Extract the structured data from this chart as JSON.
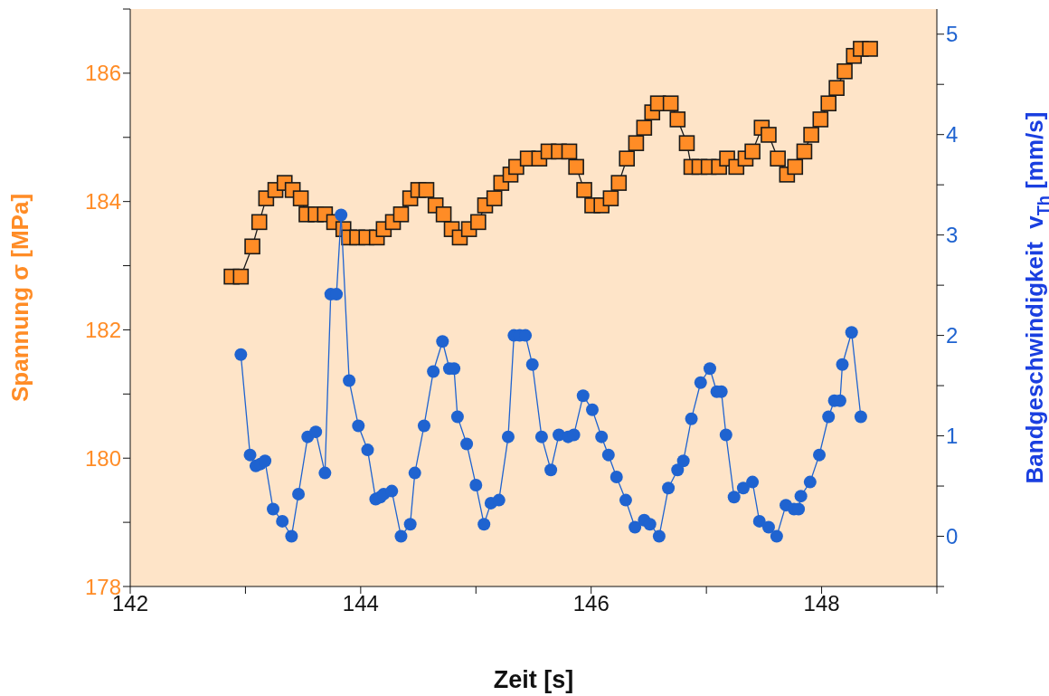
{
  "chart_data": {
    "type": "line",
    "xlabel": "Zeit [s]",
    "ylabel": "Spannung σ [MPa]",
    "y2label": "Bandgeschwindigkeit  v$_{Th}$ [mm/s]",
    "xlim": [
      142,
      149
    ],
    "xticks": [
      142,
      {
        "value": 143,
        "label": null
      },
      144,
      {
        "value": 145,
        "label": null
      },
      146,
      {
        "value": 147,
        "label": null
      },
      148,
      {
        "value": 149,
        "label": null
      }
    ],
    "ylim": [
      178,
      187
    ],
    "yticks": [
      178,
      {
        "value": 179,
        "label": null
      },
      180,
      {
        "value": 181,
        "label": null
      },
      182,
      {
        "value": 183,
        "label": null
      },
      184,
      {
        "value": 185,
        "label": null
      },
      186,
      {
        "value": 187,
        "label": null
      }
    ],
    "y2lim": [
      -0.5,
      5.25
    ],
    "y2ticks": [
      {
        "value": -0.5,
        "label": null
      },
      0,
      {
        "value": 0.5,
        "label": null
      },
      1,
      {
        "value": 1.5,
        "label": null
      },
      2,
      {
        "value": 2.5,
        "label": null
      },
      3,
      {
        "value": 3.5,
        "label": null
      },
      4,
      {
        "value": 4.5,
        "label": null
      },
      5
    ],
    "line_style": "solid",
    "series": [
      {
        "color": "#ff8c26",
        "marker": "square",
        "axis": "y",
        "x": [
          142.88,
          142.96,
          143.06,
          143.12,
          143.18,
          143.26,
          143.34,
          143.41,
          143.48,
          143.53,
          143.61,
          143.69,
          143.77,
          143.85,
          143.9,
          143.97,
          144.05,
          144.14,
          144.2,
          144.28,
          144.35,
          144.43,
          144.5,
          144.57,
          144.65,
          144.72,
          144.79,
          144.86,
          144.94,
          145.02,
          145.08,
          145.16,
          145.22,
          145.3,
          145.35,
          145.45,
          145.55,
          145.63,
          145.72,
          145.81,
          145.87,
          145.94,
          146.01,
          146.09,
          146.17,
          146.24,
          146.31,
          146.39,
          146.46,
          146.53,
          146.58,
          146.69,
          146.75,
          146.83,
          146.87,
          146.94,
          147.02,
          147.11,
          147.18,
          147.26,
          147.34,
          147.4,
          147.48,
          147.54,
          147.62,
          147.7,
          147.77,
          147.85,
          147.91,
          147.99,
          148.06,
          148.13,
          148.2,
          148.28,
          148.34,
          148.42
        ],
        "values": [
          182.83,
          182.83,
          183.3,
          183.68,
          184.05,
          184.18,
          184.29,
          184.18,
          184.05,
          183.8,
          183.8,
          183.8,
          183.68,
          183.57,
          183.44,
          183.44,
          183.44,
          183.44,
          183.57,
          183.68,
          183.8,
          184.05,
          184.18,
          184.18,
          183.94,
          183.8,
          183.57,
          183.44,
          183.57,
          183.68,
          183.94,
          184.05,
          184.29,
          184.42,
          184.54,
          184.67,
          184.67,
          184.78,
          184.78,
          184.78,
          184.54,
          184.18,
          183.94,
          183.94,
          184.05,
          184.29,
          184.67,
          184.91,
          185.15,
          185.39,
          185.53,
          185.53,
          185.28,
          184.91,
          184.54,
          184.54,
          184.54,
          184.54,
          184.67,
          184.54,
          184.67,
          184.78,
          185.15,
          185.04,
          184.67,
          184.42,
          184.54,
          184.78,
          185.04,
          185.28,
          185.53,
          185.77,
          186.03,
          186.27,
          186.38,
          186.38
        ]
      },
      {
        "color": "#1f63d0",
        "marker": "circle",
        "axis": "y2",
        "x": [
          142.96,
          143.04,
          143.09,
          143.13,
          143.17,
          143.24,
          143.32,
          143.4,
          143.46,
          143.54,
          143.61,
          143.69,
          143.74,
          143.79,
          143.83,
          143.9,
          143.98,
          144.06,
          144.13,
          144.17,
          144.2,
          144.27,
          144.35,
          144.43,
          144.47,
          144.55,
          144.63,
          144.71,
          144.77,
          144.81,
          144.84,
          144.92,
          145.0,
          145.07,
          145.13,
          145.2,
          145.28,
          145.33,
          145.38,
          145.43,
          145.49,
          145.57,
          145.65,
          145.72,
          145.8,
          145.85,
          145.93,
          146.01,
          146.09,
          146.15,
          146.22,
          146.3,
          146.38,
          146.46,
          146.51,
          146.59,
          146.67,
          146.75,
          146.8,
          146.87,
          146.95,
          147.03,
          147.09,
          147.13,
          147.17,
          147.24,
          147.32,
          147.4,
          147.46,
          147.54,
          147.61,
          147.69,
          147.76,
          147.8,
          147.82,
          147.9,
          147.98,
          148.06,
          148.11,
          148.16,
          148.18,
          148.26,
          148.34
        ],
        "values": [
          1.81,
          0.81,
          0.7,
          0.72,
          0.75,
          0.27,
          0.15,
          0.0,
          0.42,
          0.99,
          1.04,
          0.63,
          2.41,
          2.41,
          3.2,
          1.55,
          1.1,
          0.86,
          0.37,
          0.39,
          0.42,
          0.45,
          0.0,
          0.12,
          0.63,
          1.1,
          1.64,
          1.94,
          1.67,
          1.67,
          1.19,
          0.92,
          0.51,
          0.12,
          0.33,
          0.36,
          0.99,
          2.0,
          2.0,
          2.0,
          1.71,
          0.99,
          0.66,
          1.01,
          0.99,
          1.01,
          1.4,
          1.26,
          0.99,
          0.81,
          0.59,
          0.36,
          0.09,
          0.16,
          0.12,
          0.0,
          0.48,
          0.66,
          0.75,
          1.17,
          1.53,
          1.67,
          1.44,
          1.44,
          1.01,
          0.39,
          0.48,
          0.54,
          0.15,
          0.09,
          0.0,
          0.31,
          0.27,
          0.27,
          0.4,
          0.54,
          0.81,
          1.19,
          1.35,
          1.35,
          1.71,
          2.03,
          1.19
        ]
      }
    ]
  }
}
